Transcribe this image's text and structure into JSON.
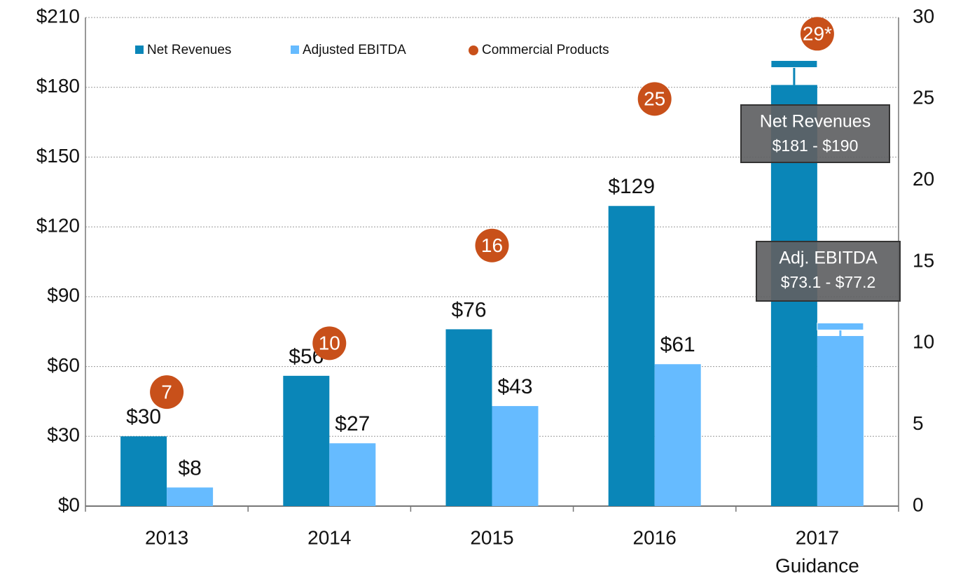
{
  "chart_data": {
    "type": "bar",
    "categories": [
      "2013",
      "2014",
      "2015",
      "2016",
      "2017"
    ],
    "category_sublabel": "Guidance",
    "series": [
      {
        "name": "Net Revenues",
        "color": "#0a86b8",
        "values": [
          30,
          56,
          76,
          129,
          181
        ],
        "value_labels": [
          "$30",
          "$56",
          "$76",
          "$129",
          null
        ],
        "guidance_high": [
          null,
          null,
          null,
          null,
          190
        ]
      },
      {
        "name": "Adjusted EBITDA",
        "color": "#66bbff",
        "values": [
          8,
          27,
          43,
          61,
          73.1
        ],
        "value_labels": [
          "$8",
          "$27",
          "$43",
          "$61",
          null
        ],
        "guidance_high": [
          null,
          null,
          null,
          null,
          77.2
        ]
      },
      {
        "name": "Commercial Products",
        "color": "#c8501a",
        "axis": "y2",
        "values": [
          7,
          10,
          16,
          25,
          29
        ],
        "value_labels": [
          "7",
          "10",
          "16",
          "25",
          "29*"
        ]
      }
    ],
    "annotations": [
      {
        "title": "Net Revenues",
        "text": "$181 - $190"
      },
      {
        "title": "Adj. EBITDA",
        "text": "$73.1 - $77.2"
      }
    ],
    "ylim": [
      0,
      210
    ],
    "yticks": [
      {
        "value": 0,
        "label": "$0"
      },
      {
        "value": 30,
        "label": "$30"
      },
      {
        "value": 60,
        "label": "$60"
      },
      {
        "value": 90,
        "label": "$90"
      },
      {
        "value": 120,
        "label": "$120"
      },
      {
        "value": 150,
        "label": "$150"
      },
      {
        "value": 180,
        "label": "$180"
      },
      {
        "value": 210,
        "label": "$210"
      }
    ],
    "y2lim": [
      0,
      30
    ],
    "y2ticks": [
      0,
      5,
      10,
      15,
      20,
      25,
      30
    ],
    "grid": true,
    "legend": "top"
  }
}
